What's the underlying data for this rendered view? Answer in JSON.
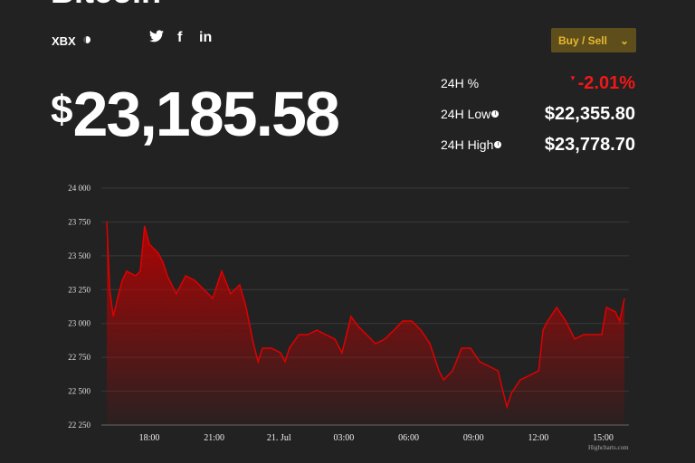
{
  "header": {
    "title": "Bitcoin",
    "symbol": "XBX",
    "buy_sell": "Buy / Sell"
  },
  "social": {
    "twitter": "twitter-icon",
    "facebook": "f",
    "linkedin": "in"
  },
  "price": {
    "currency": "$",
    "value": "23,185.58"
  },
  "stats": [
    {
      "label": "24H %",
      "value": "-2.01%",
      "direction": "down",
      "color": "#f01818"
    },
    {
      "label": "24H Low",
      "value": "$22,355.80"
    },
    {
      "label": "24H High",
      "value": "$23,778.70"
    }
  ],
  "chart_data": {
    "type": "area",
    "ylim": [
      22250,
      24000
    ],
    "yticks": [
      "24 000",
      "23 750",
      "23 500",
      "23 250",
      "23 000",
      "22 750",
      "22 500",
      "22 250"
    ],
    "ytick_values": [
      24000,
      23750,
      23500,
      23250,
      23000,
      22750,
      22500,
      22250
    ],
    "xticks": [
      "18:00",
      "21:00",
      "21. Jul",
      "03:00",
      "06:00",
      "09:00",
      "12:00",
      "15:00"
    ],
    "xtick_times": [
      "20 Jul 18:00",
      "20 Jul 21:00",
      "21 Jul 00:00",
      "21 Jul 03:00",
      "21 Jul 06:00",
      "21 Jul 09:00",
      "21 Jul 12:00",
      "21 Jul 15:00"
    ],
    "xlim": [
      "20 Jul 16:02",
      "21 Jul 15:59"
    ],
    "grid": true,
    "color": "#e00000",
    "credit": "Highcharts.com",
    "points": [
      [
        "20 Jul 16:02",
        23753
      ],
      [
        "20 Jul 16:10",
        23252
      ],
      [
        "20 Jul 16:20",
        23052
      ],
      [
        "20 Jul 16:32",
        23186
      ],
      [
        "20 Jul 16:45",
        23319
      ],
      [
        "20 Jul 16:57",
        23386
      ],
      [
        "20 Jul 17:22",
        23352
      ],
      [
        "20 Jul 17:35",
        23386
      ],
      [
        "20 Jul 17:47",
        23720
      ],
      [
        "20 Jul 18:00",
        23586
      ],
      [
        "20 Jul 18:25",
        23519
      ],
      [
        "20 Jul 18:38",
        23452
      ],
      [
        "20 Jul 18:50",
        23352
      ],
      [
        "20 Jul 19:15",
        23219
      ],
      [
        "20 Jul 19:41",
        23352
      ],
      [
        "20 Jul 20:06",
        23319
      ],
      [
        "20 Jul 20:31",
        23252
      ],
      [
        "20 Jul 20:56",
        23186
      ],
      [
        "20 Jul 21:21",
        23386
      ],
      [
        "20 Jul 21:46",
        23219
      ],
      [
        "20 Jul 22:11",
        23286
      ],
      [
        "20 Jul 22:29",
        23118
      ],
      [
        "20 Jul 22:49",
        22851
      ],
      [
        "20 Jul 23:02",
        22718
      ],
      [
        "20 Jul 23:14",
        22818
      ],
      [
        "20 Jul 23:39",
        22818
      ],
      [
        "21 Jul 00:04",
        22784
      ],
      [
        "21 Jul 00:17",
        22718
      ],
      [
        "21 Jul 00:29",
        22818
      ],
      [
        "21 Jul 00:55",
        22918
      ],
      [
        "21 Jul 01:20",
        22918
      ],
      [
        "21 Jul 01:45",
        22951
      ],
      [
        "21 Jul 02:10",
        22918
      ],
      [
        "21 Jul 02:35",
        22885
      ],
      [
        "21 Jul 02:55",
        22784
      ],
      [
        "21 Jul 03:20",
        23052
      ],
      [
        "21 Jul 03:38",
        22985
      ],
      [
        "21 Jul 04:03",
        22918
      ],
      [
        "21 Jul 04:28",
        22851
      ],
      [
        "21 Jul 04:54",
        22885
      ],
      [
        "21 Jul 05:19",
        22951
      ],
      [
        "21 Jul 05:44",
        23018
      ],
      [
        "21 Jul 06:09",
        23018
      ],
      [
        "21 Jul 06:34",
        22951
      ],
      [
        "21 Jul 06:59",
        22851
      ],
      [
        "21 Jul 07:24",
        22651
      ],
      [
        "21 Jul 07:37",
        22584
      ],
      [
        "21 Jul 08:02",
        22651
      ],
      [
        "21 Jul 08:27",
        22818
      ],
      [
        "21 Jul 08:52",
        22818
      ],
      [
        "21 Jul 09:17",
        22718
      ],
      [
        "21 Jul 09:43",
        22684
      ],
      [
        "21 Jul 10:08",
        22651
      ],
      [
        "21 Jul 10:20",
        22517
      ],
      [
        "21 Jul 10:33",
        22384
      ],
      [
        "21 Jul 10:45",
        22484
      ],
      [
        "21 Jul 11:10",
        22584
      ],
      [
        "21 Jul 11:36",
        22617
      ],
      [
        "21 Jul 12:01",
        22651
      ],
      [
        "21 Jul 12:13",
        22951
      ],
      [
        "21 Jul 12:26",
        23018
      ],
      [
        "21 Jul 12:51",
        23118
      ],
      [
        "21 Jul 13:16",
        23018
      ],
      [
        "21 Jul 13:41",
        22885
      ],
      [
        "21 Jul 14:06",
        22918
      ],
      [
        "21 Jul 14:31",
        22918
      ],
      [
        "21 Jul 14:56",
        22918
      ],
      [
        "21 Jul 15:09",
        23118
      ],
      [
        "21 Jul 15:34",
        23086
      ],
      [
        "21 Jul 15:46",
        23018
      ],
      [
        "21 Jul 15:59",
        23186
      ]
    ]
  }
}
